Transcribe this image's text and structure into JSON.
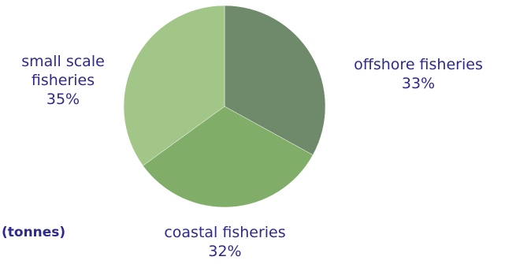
{
  "chart_data": {
    "type": "pie",
    "title": "",
    "unit_label": "(tonnes)",
    "slices": [
      {
        "label": "offshore fisheries",
        "percent_text": "33%",
        "value": 33,
        "color": "#6f8a6a"
      },
      {
        "label": "coastal fisheries",
        "percent_text": "32%",
        "value": 32,
        "color": "#80ae68"
      },
      {
        "label": "small scale fisheries",
        "percent_text": "35%",
        "value": 35,
        "color": "#a2c688"
      }
    ]
  },
  "colors": {
    "label_text": "#2e2a8c",
    "slice_edge": "#ffffff"
  }
}
